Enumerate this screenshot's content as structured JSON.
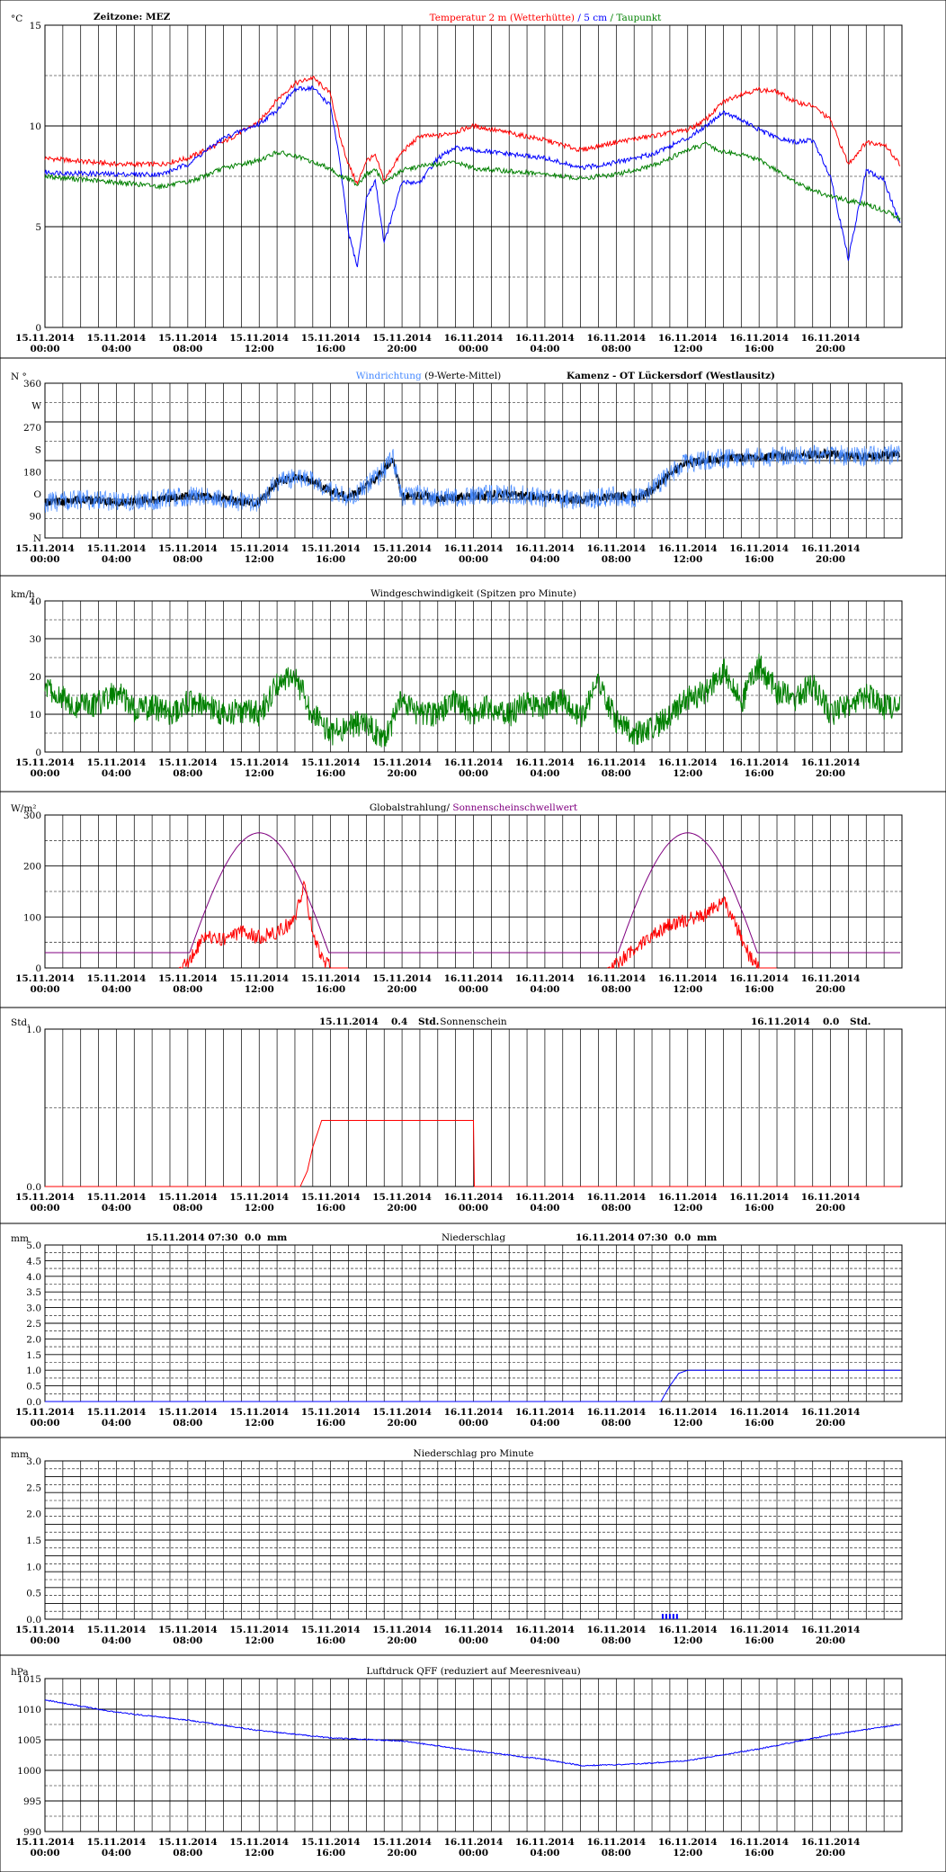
{
  "header": {
    "timezone": "Zeitzone: MEZ",
    "station": "Kamenz - OT Lückersdorf (Westlausitz)"
  },
  "x_axis_labels": [
    [
      "15.11.2014",
      "00:00"
    ],
    [
      "15.11.2014",
      "04:00"
    ],
    [
      "15.11.2014",
      "08:00"
    ],
    [
      "15.11.2014",
      "12:00"
    ],
    [
      "15.11.2014",
      "16:00"
    ],
    [
      "15.11.2014",
      "20:00"
    ],
    [
      "16.11.2014",
      "00:00"
    ],
    [
      "16.11.2014",
      "04:00"
    ],
    [
      "16.11.2014",
      "08:00"
    ],
    [
      "16.11.2014",
      "12:00"
    ],
    [
      "16.11.2014",
      "16:00"
    ],
    [
      "16.11.2014",
      "20:00"
    ]
  ],
  "colors": {
    "red": "#ff0000",
    "blue": "#0000ff",
    "green": "#008000",
    "purple": "#800080",
    "lightblue": "#4488ff",
    "black": "#000000"
  },
  "chart_data": [
    {
      "id": "temperature",
      "type": "line",
      "unit": "°C",
      "ylim": [
        0,
        15
      ],
      "yticks": [
        "0",
        "5",
        "10",
        "15"
      ],
      "title_parts": [
        {
          "text": "Temperatur 2 m (Wetterhütte)",
          "color": "#ff0000"
        },
        {
          "text": "  /  ",
          "color": "#0000ff"
        },
        {
          "text": "5 cm",
          "color": "#0000ff"
        },
        {
          "text": " / ",
          "color": "#008000"
        },
        {
          "text": "Taupunkt",
          "color": "#008000"
        }
      ],
      "x_hours": [
        0,
        4,
        6.5,
        8,
        10,
        12,
        13,
        14,
        15,
        16,
        16.5,
        17,
        17.5,
        18,
        18.5,
        19,
        20,
        21,
        22,
        23,
        24,
        28,
        30,
        32,
        34,
        36,
        37,
        38,
        39,
        40,
        41,
        42,
        43,
        44,
        45,
        46,
        47,
        47.9
      ],
      "series": [
        {
          "name": "Temperatur 2 m (Wetterhütte)",
          "color": "#ff0000",
          "values": [
            8.4,
            8.1,
            8.1,
            8.4,
            9.2,
            10.2,
            11.3,
            12.1,
            12.4,
            11.6,
            9.5,
            8.1,
            7.1,
            8.3,
            8.5,
            7.3,
            8.7,
            9.5,
            9.5,
            9.7,
            10.0,
            9.3,
            8.8,
            9.2,
            9.5,
            9.8,
            10.3,
            11.2,
            11.6,
            11.8,
            11.7,
            11.2,
            11.0,
            10.3,
            8.1,
            9.2,
            9.1,
            8.1
          ]
        },
        {
          "name": "5 cm",
          "color": "#0000ff",
          "values": [
            7.7,
            7.6,
            7.6,
            8.1,
            9.4,
            10.1,
            10.8,
            11.8,
            11.9,
            11.0,
            8.3,
            4.7,
            3.0,
            6.4,
            7.3,
            4.2,
            7.2,
            7.2,
            8.4,
            8.9,
            8.8,
            8.4,
            7.9,
            8.2,
            8.6,
            9.4,
            10.0,
            10.7,
            10.3,
            9.8,
            9.4,
            9.2,
            9.3,
            7.5,
            3.4,
            7.8,
            7.3,
            5.1
          ]
        },
        {
          "name": "Taupunkt",
          "color": "#008000",
          "values": [
            7.5,
            7.2,
            7.0,
            7.2,
            7.9,
            8.3,
            8.7,
            8.5,
            8.2,
            7.9,
            7.5,
            7.4,
            7.1,
            7.6,
            7.8,
            7.2,
            7.8,
            8.0,
            8.1,
            8.2,
            7.9,
            7.6,
            7.4,
            7.6,
            8.0,
            8.8,
            9.1,
            8.7,
            8.6,
            8.3,
            7.8,
            7.2,
            6.8,
            6.5,
            6.3,
            6.1,
            5.8,
            5.4
          ]
        }
      ]
    },
    {
      "id": "wind_direction",
      "type": "line",
      "unit": "N °",
      "ylim": [
        0,
        360
      ],
      "yticks": [
        "N",
        "90",
        "O",
        "180",
        "S",
        "270",
        "W",
        "360"
      ],
      "title_parts": [
        {
          "text": "Windrichtung",
          "color": "#4488ff"
        },
        {
          "text": " (9-Werte-Mittel)",
          "color": "#000000"
        }
      ],
      "x_hours": [
        0,
        2,
        4,
        6,
        8,
        10,
        11,
        12,
        13,
        14,
        15,
        16,
        17,
        18,
        19,
        19.5,
        20,
        21,
        22,
        24,
        26,
        28,
        30,
        32,
        33,
        34,
        35,
        36,
        38,
        40,
        42,
        44,
        45,
        46,
        47.9
      ],
      "series": [
        {
          "name": "Windrichtung",
          "color": "#000000",
          "values": [
            82,
            90,
            84,
            88,
            98,
            92,
            85,
            80,
            130,
            140,
            132,
            108,
            95,
            120,
            158,
            185,
            95,
            100,
            92,
            98,
            102,
            95,
            88,
            98,
            92,
            110,
            150,
            175,
            185,
            188,
            192,
            196,
            190,
            190,
            196
          ]
        }
      ]
    },
    {
      "id": "wind_speed",
      "type": "line",
      "unit": "km/h",
      "ylim": [
        0,
        40
      ],
      "yticks": [
        "0",
        "10",
        "20",
        "30",
        "40"
      ],
      "title_parts": [
        {
          "text": "Windgeschwindigkeit (Spitzen pro Minute)",
          "color": "#000000"
        }
      ],
      "x_hours": [
        0,
        1,
        2,
        3,
        4,
        5,
        6,
        7,
        8,
        9,
        10,
        11,
        12,
        13,
        14,
        15,
        16,
        17,
        18,
        19,
        20,
        21,
        22,
        23,
        24,
        25,
        26,
        27,
        28,
        29,
        30,
        31,
        32,
        33,
        34,
        35,
        36,
        37,
        38,
        39,
        40,
        41,
        42,
        43,
        44,
        45,
        46,
        47,
        47.9
      ],
      "series": [
        {
          "name": "Windgeschwindigkeit",
          "color": "#008000",
          "values": [
            18,
            14,
            12,
            13,
            16,
            11,
            12,
            10,
            13,
            12,
            10,
            11,
            10,
            18,
            20,
            10,
            5,
            7,
            8,
            3,
            14,
            10,
            10,
            14,
            10,
            12,
            10,
            13,
            12,
            14,
            9,
            18,
            8,
            5,
            6,
            10,
            14,
            16,
            22,
            13,
            23,
            16,
            14,
            18,
            10,
            12,
            15,
            12,
            13
          ]
        }
      ]
    },
    {
      "id": "radiation",
      "type": "line",
      "unit": "W/m²",
      "ylim": [
        0,
        300
      ],
      "yticks": [
        "0",
        "100",
        "200",
        "300"
      ],
      "title_parts": [
        {
          "text": "Globalstrahlung/ ",
          "color": "#000000"
        },
        {
          "text": "Sonnenscheinschwellwert",
          "color": "#800080"
        }
      ],
      "x_hours": [
        7.5,
        8,
        9,
        10,
        11,
        12,
        13,
        14,
        14.5,
        15,
        15.5,
        16,
        17
      ],
      "series": [
        {
          "name": "Globalstrahlung Tag 1",
          "color": "#ff0000",
          "values": [
            0,
            10,
            65,
            55,
            70,
            60,
            70,
            95,
            165,
            70,
            20,
            0,
            0
          ]
        },
        {
          "name": "Globalstrahlung Tag 2",
          "color": "#ff0000",
          "x_offset_hours": 24,
          "values": [
            0,
            8,
            35,
            65,
            85,
            95,
            105,
            130,
            100,
            60,
            20,
            0,
            0
          ]
        }
      ],
      "threshold": {
        "name": "Sonnenscheinschwellwert",
        "color": "#800080",
        "base": 30,
        "peak": 265,
        "rise_hour": 7.8,
        "set_hour": 16.2
      }
    },
    {
      "id": "sunshine",
      "type": "line",
      "unit": "Std.",
      "ylim": [
        0,
        1
      ],
      "yticks": [
        "0.0",
        "1.0"
      ],
      "title_parts": [
        {
          "text": "Sonnenschein",
          "color": "#000000"
        }
      ],
      "annotations": [
        {
          "date": "15.11.2014",
          "value": "0.4",
          "unit": "Std."
        },
        {
          "date": "16.11.2014",
          "value": "0.0",
          "unit": "Std."
        }
      ],
      "x_hours": [
        0,
        14.3,
        14.7,
        15,
        15.5,
        24,
        24.01,
        47.9
      ],
      "series": [
        {
          "name": "Sonnenschein",
          "color": "#ff0000",
          "values": [
            0,
            0,
            0.1,
            0.25,
            0.42,
            0.42,
            0,
            0
          ]
        }
      ]
    },
    {
      "id": "precip_sum",
      "type": "line",
      "unit": "mm",
      "ylim": [
        0,
        5
      ],
      "yticks": [
        "0.0",
        "0.5",
        "1.0",
        "1.5",
        "2.0",
        "2.5",
        "3.0",
        "3.5",
        "4.0",
        "4.5",
        "5.0"
      ],
      "title_parts": [
        {
          "text": "Niederschlag",
          "color": "#000000"
        }
      ],
      "annotations": [
        {
          "date": "15.11.2014 07:30",
          "value": "0.0",
          "unit": "mm"
        },
        {
          "date": "16.11.2014 07:30",
          "value": "0.0",
          "unit": "mm"
        }
      ],
      "x_hours": [
        0,
        34.5,
        35,
        35.5,
        36,
        47.9
      ],
      "series": [
        {
          "name": "Niederschlag",
          "color": "#0000ff",
          "values": [
            0,
            0,
            0.5,
            0.9,
            1.0,
            1.0
          ]
        }
      ]
    },
    {
      "id": "precip_rate",
      "type": "bar",
      "unit": "mm",
      "ylim": [
        0,
        3
      ],
      "yticks": [
        "0.0",
        "0.5",
        "1.0",
        "1.5",
        "2.0",
        "2.5",
        "3.0"
      ],
      "title_parts": [
        {
          "text": "Niederschlag pro Minute",
          "color": "#000000"
        }
      ],
      "x_hours": [
        34.6,
        34.8,
        35.0,
        35.2,
        35.4
      ],
      "series": [
        {
          "name": "Niederschlag pro Minute",
          "color": "#0000ff",
          "values": [
            0.1,
            0.1,
            0.1,
            0.1,
            0.1
          ]
        }
      ]
    },
    {
      "id": "pressure",
      "type": "line",
      "unit": "hPa",
      "ylim": [
        990,
        1015
      ],
      "yticks": [
        "990",
        "995",
        "1000",
        "1005",
        "1010",
        "1015"
      ],
      "title_parts": [
        {
          "text": "Luftdruck QFF (reduziert auf Meeresniveau)",
          "color": "#000000"
        }
      ],
      "x_hours": [
        0,
        4,
        8,
        12,
        16,
        20,
        24,
        28,
        30,
        32,
        34,
        36,
        40,
        44,
        47.9
      ],
      "series": [
        {
          "name": "Luftdruck QFF",
          "color": "#0000ff",
          "values": [
            1011.5,
            1009.5,
            1008.2,
            1006.5,
            1005.3,
            1004.8,
            1003.2,
            1001.8,
            1000.8,
            1000.9,
            1001.2,
            1001.6,
            1003.5,
            1005.8,
            1007.5
          ]
        }
      ]
    }
  ]
}
